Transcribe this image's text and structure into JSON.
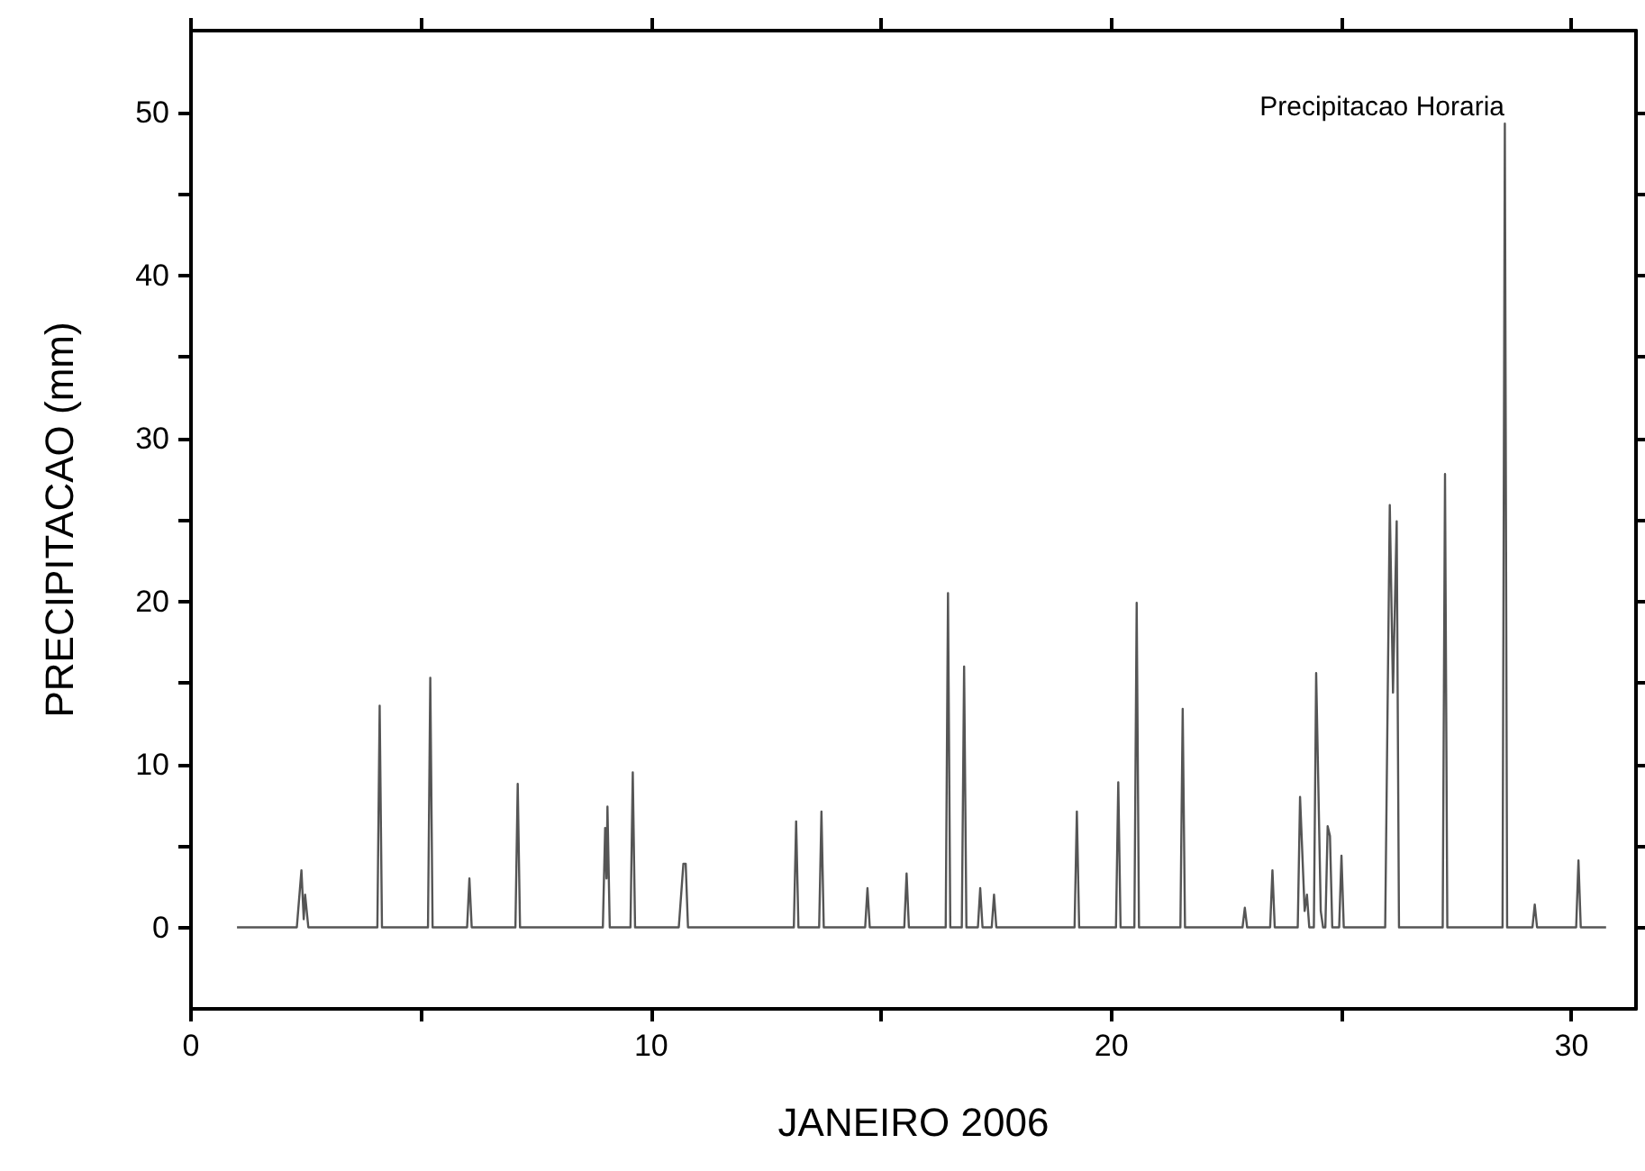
{
  "chart_data": {
    "type": "line",
    "xlabel": "JANEIRO 2006",
    "ylabel": "PRECIPITACAO (mm)",
    "color": "#555555",
    "marker": "none",
    "line_style": "solid",
    "grid": false,
    "annotations": [
      "Precipitacao Horaria"
    ],
    "xlim": [
      0,
      31.4
    ],
    "ylim": [
      -5,
      55
    ],
    "xticks": [
      0,
      {
        "value": 5,
        "label": null
      },
      10,
      {
        "value": 15,
        "label": null
      },
      20,
      {
        "value": 25,
        "label": null
      },
      30
    ],
    "yticks": [
      0,
      {
        "value": 5,
        "label": null
      },
      10,
      {
        "value": 15,
        "label": null
      },
      20,
      {
        "value": 25,
        "label": null
      },
      30,
      {
        "value": 35,
        "label": null
      },
      40,
      {
        "value": 45,
        "label": null
      },
      50
    ],
    "x": [
      1.0,
      2.3,
      2.4,
      2.45,
      2.48,
      2.55,
      4.05,
      4.1,
      4.15,
      5.15,
      5.2,
      5.25,
      6.0,
      6.05,
      6.1,
      7.05,
      7.1,
      7.15,
      8.95,
      9.0,
      9.03,
      9.05,
      9.1,
      9.55,
      9.6,
      9.65,
      10.6,
      10.7,
      10.75,
      10.8,
      13.1,
      13.15,
      13.2,
      13.65,
      13.7,
      13.75,
      14.65,
      14.7,
      14.75,
      15.5,
      15.55,
      15.6,
      16.4,
      16.45,
      16.5,
      16.75,
      16.8,
      16.85,
      17.1,
      17.15,
      17.2,
      17.4,
      17.45,
      17.5,
      19.2,
      19.25,
      19.3,
      20.1,
      20.15,
      20.2,
      20.5,
      20.55,
      20.6,
      21.5,
      21.55,
      21.6,
      22.85,
      22.9,
      22.95,
      23.45,
      23.5,
      23.55,
      24.05,
      24.1,
      24.2,
      24.25,
      24.3,
      24.4,
      24.45,
      24.55,
      24.6,
      24.65,
      24.7,
      24.75,
      24.8,
      24.95,
      25.0,
      25.05,
      25.95,
      26.05,
      26.12,
      26.2,
      26.25,
      27.2,
      27.25,
      27.3,
      28.5,
      28.55,
      28.6,
      29.15,
      29.2,
      29.25,
      30.1,
      30.15,
      30.2,
      30.75
    ],
    "values": [
      0,
      0,
      3.5,
      0.5,
      2.0,
      0,
      0,
      13.6,
      0,
      0,
      15.3,
      0,
      0,
      3.0,
      0,
      0,
      8.8,
      0,
      0,
      6.1,
      3.0,
      7.4,
      0,
      0,
      9.5,
      0,
      0,
      3.9,
      3.9,
      0,
      0,
      6.5,
      0,
      0,
      7.1,
      0,
      0,
      2.4,
      0,
      0,
      3.3,
      0,
      0,
      20.5,
      0,
      0,
      16.0,
      0,
      0,
      2.4,
      0,
      0,
      2.0,
      0,
      0,
      7.1,
      0,
      0,
      8.9,
      0,
      0,
      19.9,
      0,
      0,
      13.4,
      0,
      0,
      1.2,
      0,
      0,
      3.5,
      0,
      0,
      8.0,
      1.0,
      2.0,
      0,
      0,
      15.6,
      1.0,
      0,
      0,
      6.2,
      5.6,
      0,
      0,
      4.4,
      0,
      0,
      25.9,
      14.4,
      24.9,
      0,
      0,
      27.8,
      0,
      0,
      49.3,
      0,
      0,
      1.4,
      0,
      0,
      4.1,
      0,
      0
    ]
  }
}
